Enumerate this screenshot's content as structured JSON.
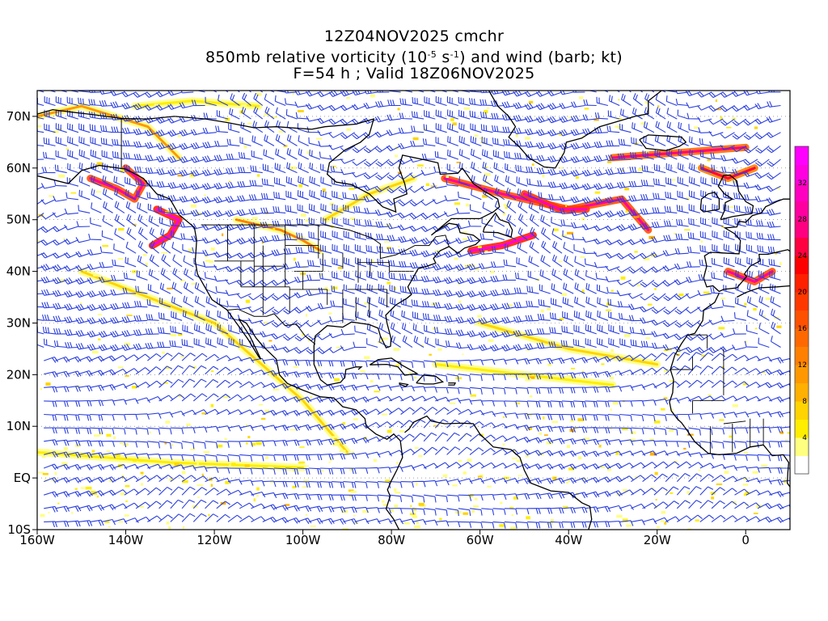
{
  "header": {
    "line1": "12Z04NOV2025 cmchr",
    "line2_a": "850mb relative vorticity (10",
    "line2_exp1": "-5",
    "line2_b": " s",
    "line2_exp2": "-1",
    "line2_c": ") and wind (barb; kt)",
    "line3": "F=54 h ; Valid 18Z06NOV2025"
  },
  "map": {
    "lon_range": [
      -160,
      10
    ],
    "lat_range": [
      -10,
      75
    ],
    "lon_ticks": [
      {
        "value": -160,
        "label": "160W"
      },
      {
        "value": -140,
        "label": "140W"
      },
      {
        "value": -120,
        "label": "120W"
      },
      {
        "value": -100,
        "label": "100W"
      },
      {
        "value": -80,
        "label": "80W"
      },
      {
        "value": -60,
        "label": "60W"
      },
      {
        "value": -40,
        "label": "40W"
      },
      {
        "value": -20,
        "label": "20W"
      },
      {
        "value": 0,
        "label": "0"
      }
    ],
    "lat_ticks": [
      {
        "value": 70,
        "label": "70N"
      },
      {
        "value": 60,
        "label": "60N"
      },
      {
        "value": 50,
        "label": "50N"
      },
      {
        "value": 40,
        "label": "40N"
      },
      {
        "value": 30,
        "label": "30N"
      },
      {
        "value": 20,
        "label": "20N"
      },
      {
        "value": 10,
        "label": "10N"
      },
      {
        "value": 0,
        "label": "EQ"
      },
      {
        "value": -10,
        "label": "10S"
      }
    ],
    "barb_color": "#2b3fe0",
    "coast_color": "#000000"
  },
  "colorbar": {
    "levels": [
      0,
      2,
      4,
      6,
      8,
      10,
      12,
      14,
      16,
      18,
      20,
      22,
      24,
      26,
      28,
      30,
      32,
      34,
      36
    ],
    "labels": [
      {
        "value": 4,
        "label": "4"
      },
      {
        "value": 8,
        "label": "8"
      },
      {
        "value": 12,
        "label": "12"
      },
      {
        "value": 16,
        "label": "16"
      },
      {
        "value": 20,
        "label": "20"
      },
      {
        "value": 24,
        "label": "24"
      },
      {
        "value": 28,
        "label": "28"
      },
      {
        "value": 32,
        "label": "32"
      }
    ],
    "colors": [
      "#ffffff",
      "#ffff80",
      "#ffee00",
      "#ffd400",
      "#ffb000",
      "#ff9800",
      "#ff8000",
      "#ff6800",
      "#ff5000",
      "#ff3800",
      "#ff2000",
      "#ff0000",
      "#ff0040",
      "#ff0080",
      "#ff00a0",
      "#ff00c0",
      "#ff00e0",
      "#ff00ff"
    ]
  }
}
